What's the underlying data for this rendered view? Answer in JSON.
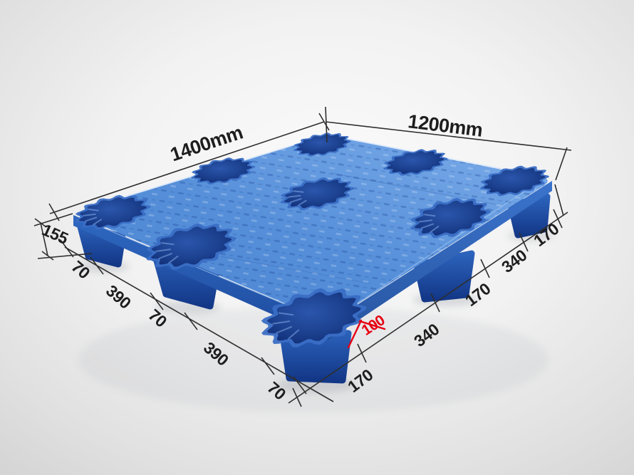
{
  "illustration": {
    "alt": "Blue nestable plastic pallet with nine molded legs shown in 3/4 perspective, annotated with black dimension lines and one red height callout",
    "subject": "plastic-pallet"
  },
  "dimensions": {
    "length": "1400mm",
    "width": "1200mm",
    "side_height": "155",
    "leg_height": "100",
    "bottom_left_segments": [
      "70",
      "390",
      "70",
      "390",
      "70"
    ],
    "bottom_right_segments": [
      "170",
      "340",
      "170",
      "340",
      "170"
    ]
  },
  "colors": {
    "background": "#ededed",
    "deck_light": "#7cadea",
    "deck_base": "#568fd9",
    "deck_shade": "#4a83d0",
    "wall_left": "#2f68c0",
    "wall_right": "#3b74cd",
    "leg_top": "#2c63bc",
    "leg_bottom": "#133787",
    "hole_rim": "#3a6ec5",
    "hole_center": "#2b56ac",
    "hole_edge": "#12307a",
    "dimension_line": "#2e2e2e",
    "dimension_text": "#1d1d1d",
    "annotation_red": "#e60012"
  }
}
